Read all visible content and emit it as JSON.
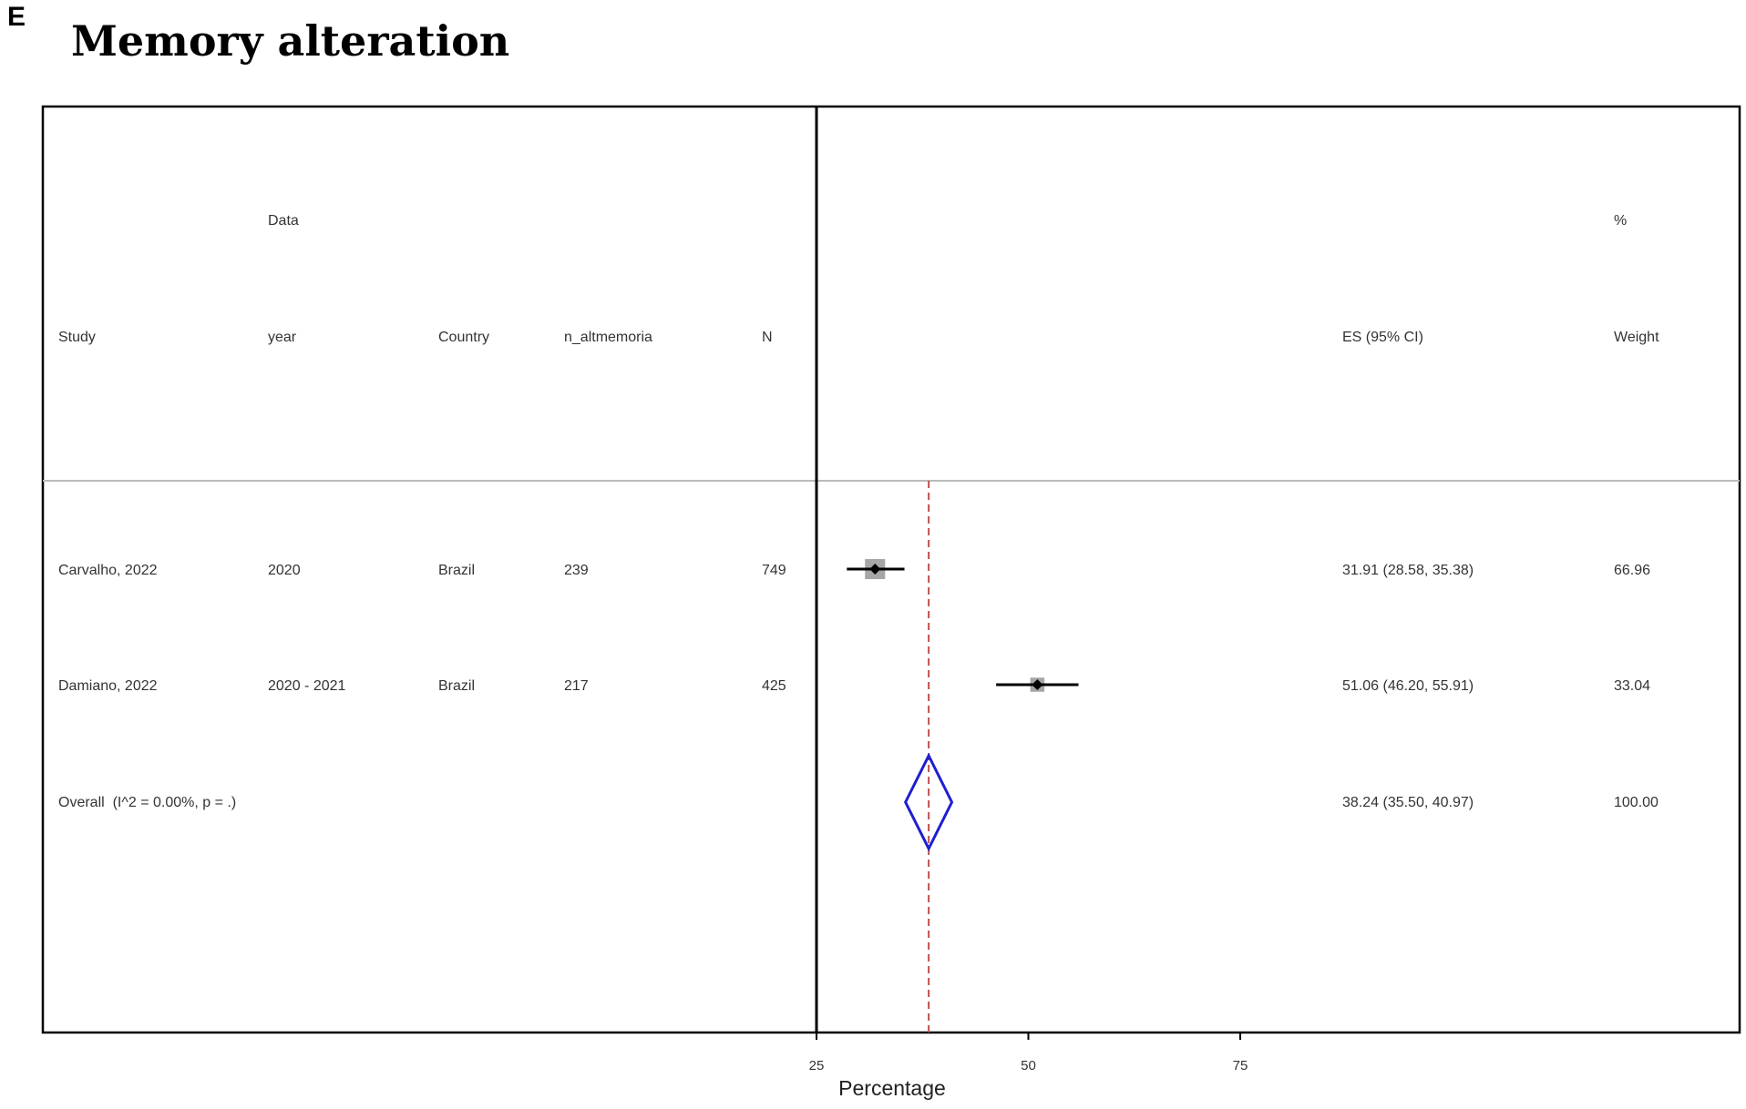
{
  "panel_label": "E",
  "title": "Memory alteration",
  "chart_data": {
    "type": "forest",
    "title": "Memory alteration",
    "xlabel": "Percentage",
    "x_ticks": [
      25,
      50,
      75
    ],
    "xlim": [
      25,
      115
    ],
    "columns": {
      "study": "Study",
      "year_top": "Data",
      "year": "year",
      "country": "Country",
      "events": "n_altmemoria",
      "n": "N",
      "es": "ES (95% CI)",
      "weight_top": "%",
      "weight": "Weight"
    },
    "studies": [
      {
        "study": "Carvalho, 2022",
        "year": "2020",
        "country": "Brazil",
        "events": "239",
        "n": "749",
        "es": 31.91,
        "ci_low": 28.58,
        "ci_high": 35.38,
        "es_text": "31.91 (28.58, 35.38)",
        "weight": 66.96,
        "weight_text": "66.96"
      },
      {
        "study": "Damiano, 2022",
        "year": "2020 - 2021",
        "country": "Brazil",
        "events": "217",
        "n": "425",
        "es": 51.06,
        "ci_low": 46.2,
        "ci_high": 55.91,
        "es_text": "51.06 (46.20, 55.91)",
        "weight": 33.04,
        "weight_text": "33.04"
      }
    ],
    "overall": {
      "label": "Overall  (I^2 = 0.00%, p = .)",
      "es": 38.24,
      "ci_low": 35.5,
      "ci_high": 40.97,
      "es_text": "38.24 (35.50, 40.97)",
      "weight_text": "100.00"
    },
    "colors": {
      "frame": "#000000",
      "separator": "#bbbbbb",
      "point": "#000000",
      "weight_box": "#a6a6a6",
      "diamond": "#1f1fd0",
      "overall_line": "#c0504d"
    }
  }
}
